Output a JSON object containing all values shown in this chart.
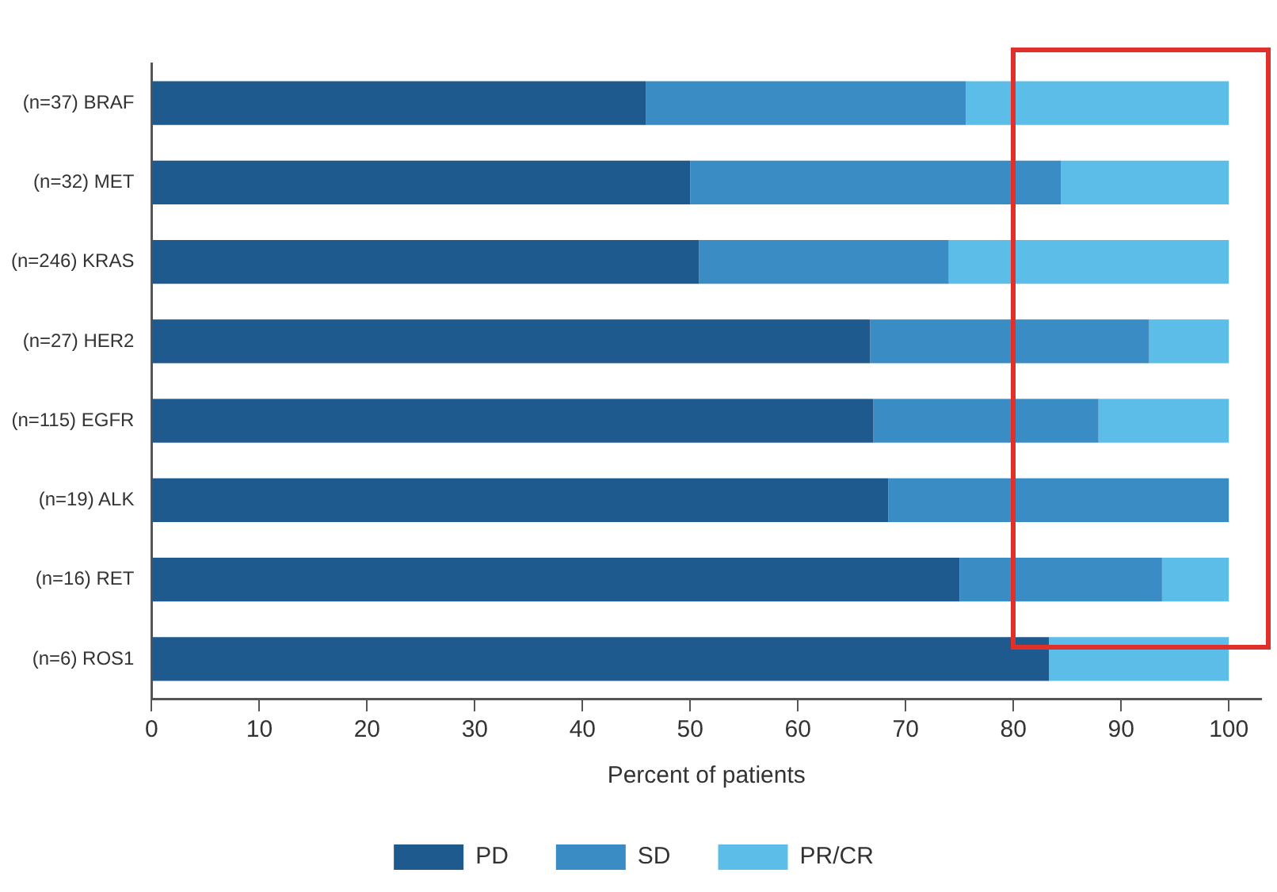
{
  "chart_data": {
    "type": "bar",
    "orientation": "horizontal",
    "stacked": true,
    "xlabel": "Percent of patients",
    "categories": [
      "(n=37) BRAF",
      "(n=32) MET",
      "(n=246) KRAS",
      "(n=27) HER2",
      "(n=115) EGFR",
      "(n=19) ALK",
      "(n=16) RET",
      "(n=6) ROS1"
    ],
    "series": [
      {
        "name": "PD",
        "color": "#1f5a8f",
        "values": [
          45.9,
          50,
          50.8,
          66.7,
          67,
          68.4,
          75,
          83.3
        ]
      },
      {
        "name": "SD",
        "color": "#3a8cc4",
        "values": [
          29.7,
          34.4,
          23.2,
          25.9,
          20.9,
          31.6,
          18.8,
          0
        ]
      },
      {
        "name": "PR/CR",
        "color": "#5bbde8",
        "values": [
          24.4,
          15.6,
          26,
          7.4,
          12.1,
          0,
          6.2,
          16.7
        ]
      }
    ],
    "xlim": [
      0,
      103
    ],
    "xticks": [
      0,
      10,
      20,
      30,
      40,
      50,
      60,
      70,
      80,
      90,
      100
    ],
    "grid": false,
    "legend": "bottom"
  }
}
